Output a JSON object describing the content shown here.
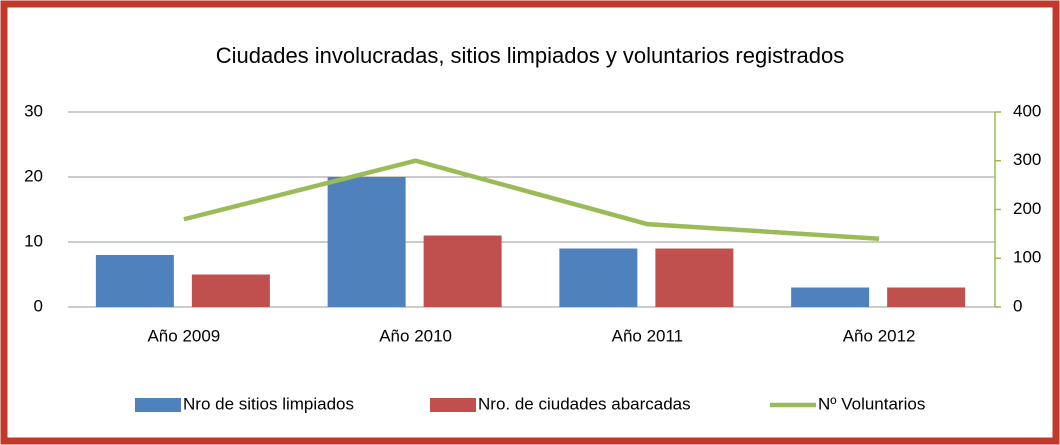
{
  "chart_data": {
    "type": "bar",
    "title": "Ciudades involucradas, sitios limpiados y voluntarios registrados",
    "categories": [
      "Año 2009",
      "Año 2010",
      "Año 2011",
      "Año 2012"
    ],
    "series": [
      {
        "name": "Nro de sitios limpiados",
        "color": "#4f81bd",
        "values": [
          8,
          20,
          9,
          3
        ]
      },
      {
        "name": "Nro.  de ciudades abarcadas",
        "color": "#c0504d",
        "values": [
          5,
          11,
          9,
          3
        ]
      },
      {
        "name": "Nº Voluntarios",
        "color": "#9bbb59",
        "type": "line",
        "axis": "y2",
        "values": [
          180,
          300,
          170,
          140
        ]
      }
    ],
    "ylim": [
      0,
      30
    ],
    "yticks": [
      0,
      10,
      20,
      30
    ],
    "y2lim": [
      0,
      400
    ],
    "y2ticks": [
      0,
      100,
      200,
      300,
      400
    ],
    "grid": true,
    "legend": "bottom"
  }
}
